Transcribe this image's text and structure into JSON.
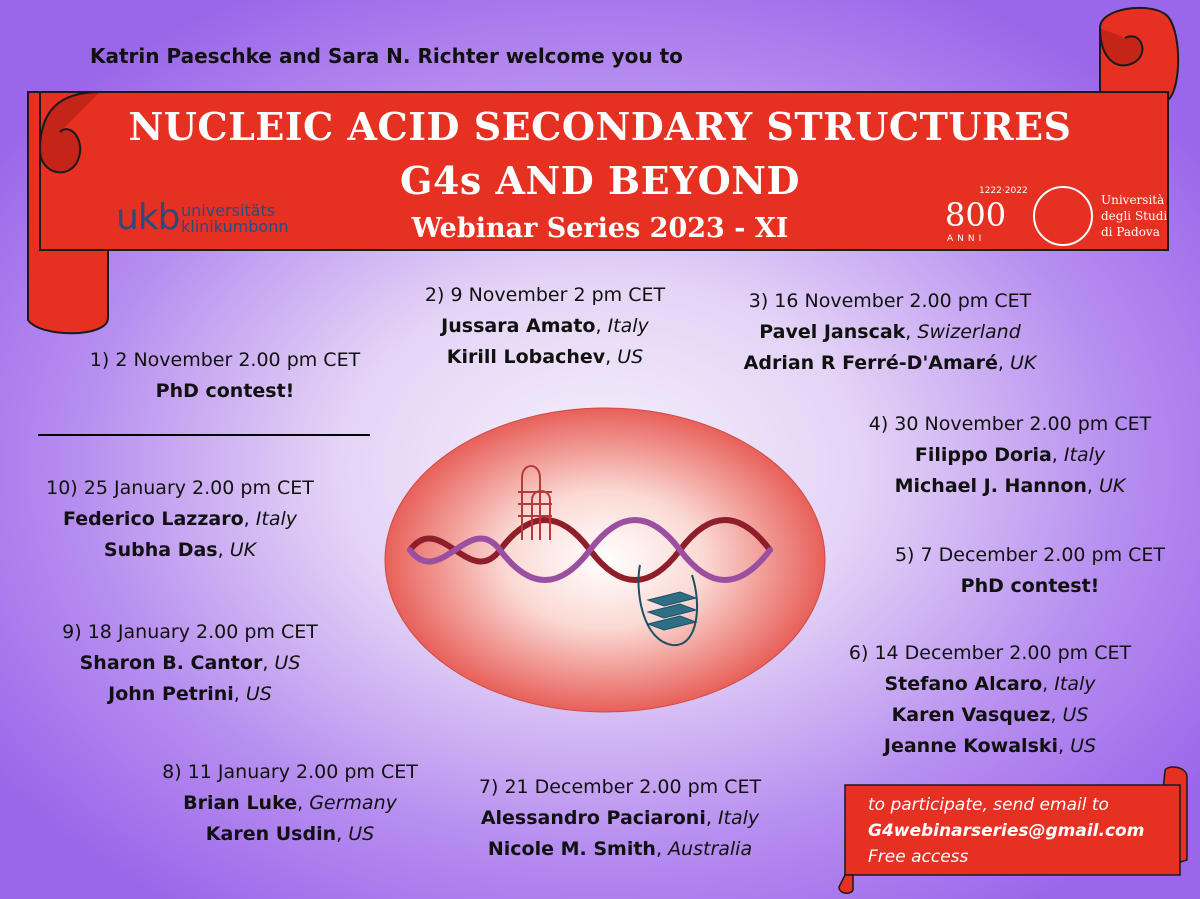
{
  "header": {
    "welcome": "Katrin Paeschke and Sara N. Richter welcome you to"
  },
  "banner": {
    "title_line1": "NUCLEIC ACID SECONDARY STRUCTURES",
    "title_line2": "G4s AND BEYOND",
    "subtitle": "Webinar Series 2023 - XI",
    "color": "#e63022"
  },
  "logos": {
    "ukb": {
      "mark": "ukb",
      "line1": "universitäts",
      "line2": "klinikumbonn"
    },
    "padova": {
      "years": "1222·2022",
      "big": "800",
      "anni": "ANNI",
      "name1": "Università",
      "name2": "degli Studi",
      "name3": "di Padova"
    }
  },
  "events": [
    {
      "date": "1)    2 November 2.00 pm CET",
      "lines": [
        {
          "name": "PhD contest!"
        }
      ]
    },
    {
      "date": "2) 9 November 2 pm CET",
      "lines": [
        {
          "name": "Jussara Amato",
          "country": "Italy"
        },
        {
          "name": "Kirill Lobachev",
          "country": "US"
        }
      ]
    },
    {
      "date": "3) 16 November 2.00 pm CET",
      "lines": [
        {
          "name": "Pavel Janscak",
          "country": "Swizerland"
        },
        {
          "name": "Adrian R Ferré-D'Amaré",
          "country": "UK"
        }
      ]
    },
    {
      "date": "4) 30 November 2.00 pm CET",
      "lines": [
        {
          "name": "Filippo Doria",
          "country": "Italy"
        },
        {
          "name": "Michael J. Hannon",
          "country": "UK"
        }
      ]
    },
    {
      "date": "5) 7 December 2.00 pm CET",
      "lines": [
        {
          "name": "PhD contest!"
        }
      ]
    },
    {
      "date": "6) 14 December 2.00 pm CET",
      "lines": [
        {
          "name": "Stefano Alcaro",
          "country": "Italy"
        },
        {
          "name": "Karen Vasquez",
          "country": "US"
        },
        {
          "name": "Jeanne Kowalski",
          "country": "US"
        }
      ]
    },
    {
      "date": "7) 21 December 2.00 pm CET",
      "lines": [
        {
          "name": "Alessandro Paciaroni",
          "country": "Italy"
        },
        {
          "name": "Nicole M. Smith",
          "country": "Australia"
        }
      ]
    },
    {
      "date": "8) 11 January 2.00 pm CET",
      "lines": [
        {
          "name": "Brian Luke",
          "country": "Germany"
        },
        {
          "name": "Karen Usdin",
          "country": "US"
        }
      ]
    },
    {
      "date": "9) 18 January 2.00 pm CET",
      "lines": [
        {
          "name": "Sharon B. Cantor",
          "country": "US"
        },
        {
          "name": "John Petrini",
          "country": "US"
        }
      ]
    },
    {
      "date": "10) 25 January 2.00 pm CET",
      "lines": [
        {
          "name": "Federico Lazzaro",
          "country": "Italy"
        },
        {
          "name": "Subha Das",
          "country": "UK"
        }
      ]
    }
  ],
  "note": {
    "line1": "to participate, send email to",
    "email": "G4webinarseries@gmail.com",
    "line3": "Free access",
    "color": "#e63022"
  }
}
